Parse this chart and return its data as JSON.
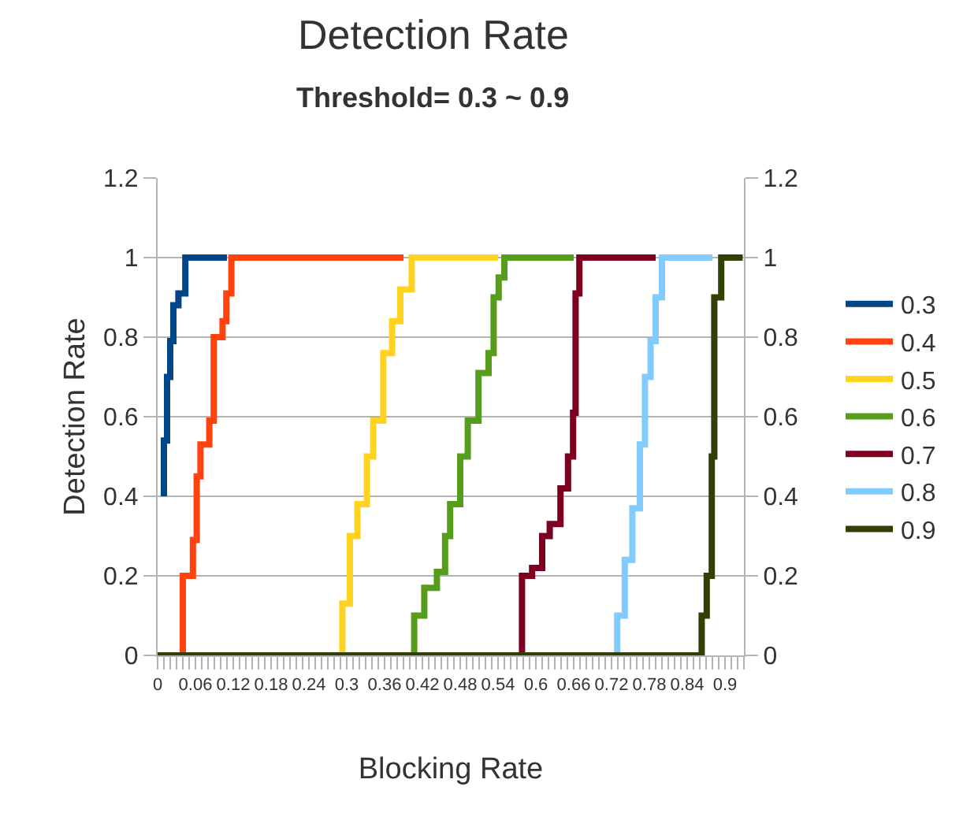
{
  "chart_data": {
    "type": "step",
    "title": "Detection Rate",
    "subtitle": "Threshold= 0.3 ~ 0.9",
    "xlabel": "Blocking Rate",
    "ylabel": "Detection Rate",
    "series": [
      {
        "name": "0.3",
        "color": "#004586",
        "x": [
          0.01,
          0.015,
          0.02,
          0.025,
          0.033,
          0.044,
          0.11
        ],
        "values": [
          0.4,
          0.54,
          0.7,
          0.79,
          0.88,
          0.91,
          1
        ]
      },
      {
        "name": "0.4",
        "color": "#ff420e",
        "x": [
          0.04,
          0.056,
          0.062,
          0.068,
          0.082,
          0.089,
          0.103,
          0.109,
          0.117,
          0.39
        ],
        "values": [
          0,
          0.2,
          0.29,
          0.45,
          0.53,
          0.59,
          0.8,
          0.84,
          0.91,
          1
        ]
      },
      {
        "name": "0.5",
        "color": "#ffd320",
        "x": [
          0.293,
          0.305,
          0.317,
          0.332,
          0.342,
          0.358,
          0.372,
          0.385,
          0.403,
          0.54
        ],
        "values": [
          0,
          0.13,
          0.3,
          0.38,
          0.5,
          0.59,
          0.76,
          0.84,
          0.92,
          1
        ]
      },
      {
        "name": "0.6",
        "color": "#579d1c",
        "x": [
          0.407,
          0.423,
          0.443,
          0.456,
          0.464,
          0.48,
          0.492,
          0.509,
          0.525,
          0.533,
          0.541,
          0.55,
          0.66
        ],
        "values": [
          0,
          0.1,
          0.17,
          0.21,
          0.3,
          0.38,
          0.5,
          0.59,
          0.71,
          0.76,
          0.9,
          0.95,
          1
        ]
      },
      {
        "name": "0.7",
        "color": "#7e0021",
        "x": [
          0.578,
          0.594,
          0.61,
          0.622,
          0.639,
          0.651,
          0.659,
          0.663,
          0.669,
          0.79
        ],
        "values": [
          0,
          0.2,
          0.22,
          0.3,
          0.33,
          0.42,
          0.5,
          0.61,
          0.91,
          1
        ]
      },
      {
        "name": "0.8",
        "color": "#83caff",
        "x": [
          0.729,
          0.741,
          0.753,
          0.765,
          0.773,
          0.782,
          0.79,
          0.8,
          0.88
        ],
        "values": [
          0,
          0.1,
          0.24,
          0.37,
          0.53,
          0.7,
          0.79,
          0.9,
          1
        ]
      },
      {
        "name": "0.9",
        "color": "#314004",
        "x": [
          0,
          0.863,
          0.871,
          0.879,
          0.883,
          0.894,
          0.928
        ],
        "values": [
          0,
          0,
          0.1,
          0.2,
          0.5,
          0.9,
          1
        ]
      }
    ],
    "xlim": [
      0,
      0.93
    ],
    "xticks": [
      0,
      {
        "value": 0.01,
        "label": null
      },
      {
        "value": 0.02,
        "label": null
      },
      {
        "value": 0.03,
        "label": null
      },
      {
        "value": 0.04,
        "label": null
      },
      {
        "value": 0.05,
        "label": null
      },
      0.06,
      {
        "value": 0.07,
        "label": null
      },
      {
        "value": 0.08,
        "label": null
      },
      {
        "value": 0.09,
        "label": null
      },
      {
        "value": 0.1,
        "label": null
      },
      {
        "value": 0.11,
        "label": null
      },
      0.12,
      {
        "value": 0.13,
        "label": null
      },
      {
        "value": 0.14,
        "label": null
      },
      {
        "value": 0.15,
        "label": null
      },
      {
        "value": 0.16,
        "label": null
      },
      {
        "value": 0.17,
        "label": null
      },
      0.18,
      {
        "value": 0.19,
        "label": null
      },
      {
        "value": 0.2,
        "label": null
      },
      {
        "value": 0.21,
        "label": null
      },
      {
        "value": 0.22,
        "label": null
      },
      {
        "value": 0.23,
        "label": null
      },
      0.24,
      {
        "value": 0.25,
        "label": null
      },
      {
        "value": 0.26,
        "label": null
      },
      {
        "value": 0.27,
        "label": null
      },
      {
        "value": 0.28,
        "label": null
      },
      {
        "value": 0.29,
        "label": null
      },
      0.3,
      {
        "value": 0.31,
        "label": null
      },
      {
        "value": 0.32,
        "label": null
      },
      {
        "value": 0.33,
        "label": null
      },
      {
        "value": 0.34,
        "label": null
      },
      {
        "value": 0.35,
        "label": null
      },
      0.36,
      {
        "value": 0.37,
        "label": null
      },
      {
        "value": 0.38,
        "label": null
      },
      {
        "value": 0.39,
        "label": null
      },
      {
        "value": 0.4,
        "label": null
      },
      {
        "value": 0.41,
        "label": null
      },
      0.42,
      {
        "value": 0.43,
        "label": null
      },
      {
        "value": 0.44,
        "label": null
      },
      {
        "value": 0.45,
        "label": null
      },
      {
        "value": 0.46,
        "label": null
      },
      {
        "value": 0.47,
        "label": null
      },
      0.48,
      {
        "value": 0.49,
        "label": null
      },
      {
        "value": 0.5,
        "label": null
      },
      {
        "value": 0.51,
        "label": null
      },
      {
        "value": 0.52,
        "label": null
      },
      {
        "value": 0.53,
        "label": null
      },
      0.54,
      {
        "value": 0.55,
        "label": null
      },
      {
        "value": 0.56,
        "label": null
      },
      {
        "value": 0.57,
        "label": null
      },
      {
        "value": 0.58,
        "label": null
      },
      {
        "value": 0.59,
        "label": null
      },
      0.6,
      {
        "value": 0.61,
        "label": null
      },
      {
        "value": 0.62,
        "label": null
      },
      {
        "value": 0.63,
        "label": null
      },
      {
        "value": 0.64,
        "label": null
      },
      {
        "value": 0.65,
        "label": null
      },
      0.66,
      {
        "value": 0.67,
        "label": null
      },
      {
        "value": 0.68,
        "label": null
      },
      {
        "value": 0.69,
        "label": null
      },
      {
        "value": 0.7,
        "label": null
      },
      {
        "value": 0.71,
        "label": null
      },
      0.72,
      {
        "value": 0.73,
        "label": null
      },
      {
        "value": 0.74,
        "label": null
      },
      {
        "value": 0.75,
        "label": null
      },
      {
        "value": 0.76,
        "label": null
      },
      {
        "value": 0.77,
        "label": null
      },
      0.78,
      {
        "value": 0.79,
        "label": null
      },
      {
        "value": 0.8,
        "label": null
      },
      {
        "value": 0.81,
        "label": null
      },
      {
        "value": 0.82,
        "label": null
      },
      {
        "value": 0.83,
        "label": null
      },
      0.84,
      {
        "value": 0.85,
        "label": null
      },
      {
        "value": 0.86,
        "label": null
      },
      {
        "value": 0.87,
        "label": null
      },
      {
        "value": 0.88,
        "label": null
      },
      {
        "value": 0.89,
        "label": null
      },
      0.9,
      {
        "value": 0.91,
        "label": null
      },
      {
        "value": 0.92,
        "label": null
      },
      {
        "value": 0.93,
        "label": null
      }
    ],
    "ylim": [
      0,
      1.2
    ],
    "yticks": [
      0,
      0.2,
      0.4,
      0.6,
      0.8,
      1,
      1.2
    ],
    "y2lim": [
      0,
      1.2
    ],
    "y2ticks": [
      0,
      0.2,
      0.4,
      0.6,
      0.8,
      1,
      1.2
    ],
    "grid": "y",
    "legend": "right",
    "line_style": "solid",
    "marker": "none"
  }
}
